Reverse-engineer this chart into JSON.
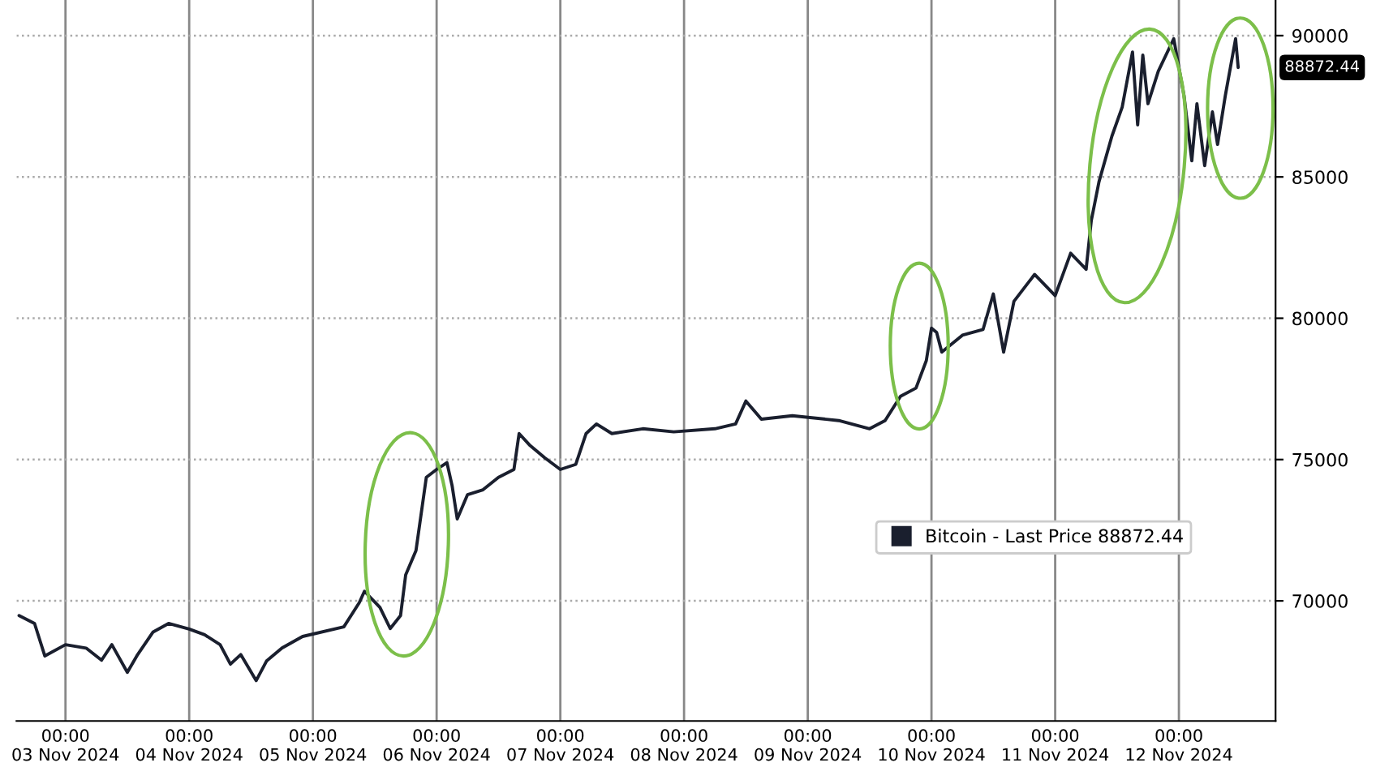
{
  "chart_data": {
    "type": "line",
    "x": [
      "2024-11-02T15:00",
      "2024-11-02T18:00",
      "2024-11-02T20:00",
      "2024-11-03T00:00",
      "2024-11-03T04:00",
      "2024-11-03T07:00",
      "2024-11-03T09:00",
      "2024-11-03T12:00",
      "2024-11-03T14:00",
      "2024-11-03T17:00",
      "2024-11-03T20:00",
      "2024-11-04T00:00",
      "2024-11-04T03:00",
      "2024-11-04T06:00",
      "2024-11-04T08:00",
      "2024-11-04T10:00",
      "2024-11-04T13:00",
      "2024-11-04T15:00",
      "2024-11-04T18:00",
      "2024-11-04T22:00",
      "2024-11-05T06:00",
      "2024-11-05T09:00",
      "2024-11-05T10:00",
      "2024-11-05T13:00",
      "2024-11-05T15:00",
      "2024-11-05T17:00",
      "2024-11-05T18:00",
      "2024-11-05T20:00",
      "2024-11-05T22:00",
      "2024-11-06T00:00",
      "2024-11-06T02:00",
      "2024-11-06T03:00",
      "2024-11-06T04:00",
      "2024-11-06T06:00",
      "2024-11-06T09:00",
      "2024-11-06T12:00",
      "2024-11-06T15:00",
      "2024-11-06T16:00",
      "2024-11-06T18:00",
      "2024-11-06T21:00",
      "2024-11-07T00:00",
      "2024-11-07T03:00",
      "2024-11-07T05:00",
      "2024-11-07T07:00",
      "2024-11-07T10:00",
      "2024-11-07T16:00",
      "2024-11-07T22:00",
      "2024-11-08T06:00",
      "2024-11-08T10:00",
      "2024-11-08T12:00",
      "2024-11-08T15:00",
      "2024-11-08T21:00",
      "2024-11-09T06:00",
      "2024-11-09T12:00",
      "2024-11-09T15:00",
      "2024-11-09T18:00",
      "2024-11-09T21:00",
      "2024-11-09T23:00",
      "2024-11-10T00:00",
      "2024-11-10T01:00",
      "2024-11-10T02:00",
      "2024-11-10T06:00",
      "2024-11-10T10:00",
      "2024-11-10T12:00",
      "2024-11-10T14:00",
      "2024-11-10T16:00",
      "2024-11-10T20:00",
      "2024-11-11T00:00",
      "2024-11-11T03:00",
      "2024-11-11T06:00",
      "2024-11-11T07:00",
      "2024-11-11T08:30",
      "2024-11-11T11:00",
      "2024-11-11T13:00",
      "2024-11-11T15:00",
      "2024-11-11T16:00",
      "2024-11-11T17:00",
      "2024-11-11T18:00",
      "2024-11-11T20:00",
      "2024-11-11T23:00",
      "2024-11-12T01:00",
      "2024-11-12T02:30",
      "2024-11-12T03:30",
      "2024-11-12T05:00",
      "2024-11-12T06:30",
      "2024-11-12T07:30",
      "2024-11-12T09:00",
      "2024-11-12T11:00",
      "2024-11-12T11:30"
    ],
    "series": [
      {
        "name": "Bitcoin - Last Price 88872.44",
        "color": "#1a1f2e",
        "values": [
          69480,
          69200,
          68050,
          68450,
          68330,
          67900,
          68450,
          67470,
          68100,
          68900,
          69200,
          69000,
          68800,
          68450,
          67760,
          68100,
          67180,
          67870,
          68330,
          68740,
          69080,
          69940,
          70340,
          69770,
          69020,
          69480,
          70920,
          71780,
          74370,
          74650,
          74890,
          74080,
          72900,
          73760,
          73930,
          74370,
          74650,
          75920,
          75520,
          75060,
          74650,
          74830,
          75920,
          76260,
          75920,
          76090,
          75980,
          76090,
          76260,
          77070,
          76430,
          76550,
          76380,
          76090,
          76380,
          77240,
          77530,
          78500,
          79650,
          79500,
          78800,
          79400,
          79600,
          80860,
          78800,
          80600,
          81550,
          80800,
          82300,
          81730,
          83450,
          84830,
          86440,
          87470,
          89420,
          86840,
          89310,
          87590,
          88740,
          89890,
          87870,
          85570,
          87590,
          85400,
          87300,
          86150,
          87870,
          89890,
          88872.44
        ]
      }
    ],
    "xlim": [
      "2024-11-02T14:30",
      "2024-11-12T18:45"
    ],
    "xticks": [
      {
        "value": "2024-11-03T00:00",
        "label": "00:00\n03 Nov 2024"
      },
      {
        "value": "2024-11-04T00:00",
        "label": "00:00\n04 Nov 2024"
      },
      {
        "value": "2024-11-05T00:00",
        "label": "00:00\n05 Nov 2024"
      },
      {
        "value": "2024-11-06T00:00",
        "label": "00:00\n06 Nov 2024"
      },
      {
        "value": "2024-11-07T00:00",
        "label": "00:00\n07 Nov 2024"
      },
      {
        "value": "2024-11-08T00:00",
        "label": "00:00\n08 Nov 2024"
      },
      {
        "value": "2024-11-09T00:00",
        "label": "00:00\n09 Nov 2024"
      },
      {
        "value": "2024-11-10T00:00",
        "label": "00:00\n10 Nov 2024"
      },
      {
        "value": "2024-11-11T00:00",
        "label": "00:00\n11 Nov 2024"
      },
      {
        "value": "2024-11-12T00:00",
        "label": "00:00\n12 Nov 2024"
      }
    ],
    "ylim": [
      65750,
      91260
    ],
    "yticks": [
      70000,
      75000,
      80000,
      85000,
      90000
    ],
    "annotations": [
      "88872.44"
    ],
    "grid": true,
    "legend": "right",
    "marker": "none",
    "line_style": "solid"
  }
}
